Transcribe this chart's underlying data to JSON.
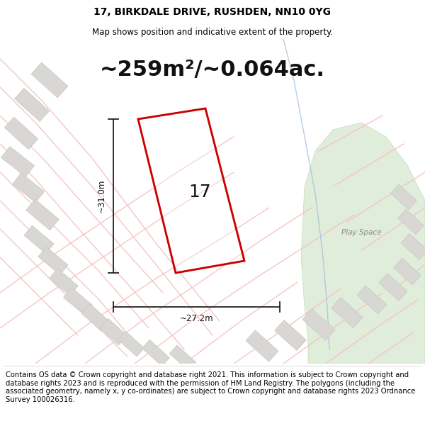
{
  "title": "17, BIRKDALE DRIVE, RUSHDEN, NN10 0YG",
  "subtitle": "Map shows position and indicative extent of the property.",
  "area_text": "~259m²/~0.064ac.",
  "dim_width": "~27.2m",
  "dim_height": "~31.0m",
  "plot_number": "17",
  "footer_text": "Contains OS data © Crown copyright and database right 2021. This information is subject to Crown copyright and database rights 2023 and is reproduced with the permission of HM Land Registry. The polygons (including the associated geometry, namely x, y co-ordinates) are subject to Crown copyright and database rights 2023 Ordnance Survey 100026316.",
  "title_fontsize": 10,
  "subtitle_fontsize": 8.5,
  "area_fontsize": 22,
  "plot_label_fontsize": 18,
  "footer_fontsize": 7.2,
  "map_bg": "#edecea",
  "building_color": "#d8d7d4",
  "building_edge": "#c8c7c4",
  "road_color": "#f5c0c0",
  "green_color": "#d6e8cf",
  "green_edge": "#b8d4b0",
  "red_plot_color": "#cc0000",
  "dim_line_color": "#222222",
  "text_color": "#111111",
  "play_space_color": "#888888"
}
